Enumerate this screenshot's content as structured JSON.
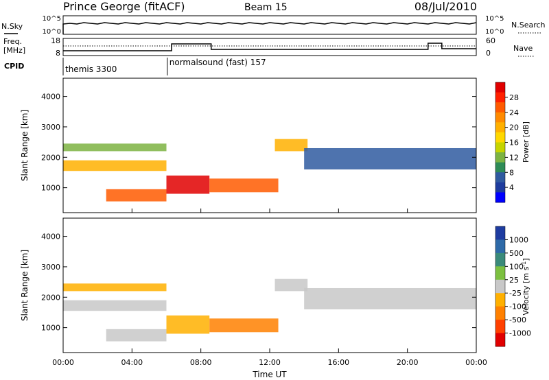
{
  "header": {
    "station": "Prince George (fitACF)",
    "beam": "Beam 15",
    "date": "08/Jul/2010"
  },
  "noise_panel": {
    "left_label": "N.Sky",
    "right_label": "N.Search",
    "left_ticks": [
      "10^5",
      "10^0"
    ],
    "right_ticks": [
      "10^5",
      "10^0"
    ]
  },
  "freq_panel": {
    "left_label_1": "Freq.",
    "left_label_2": "[MHz]",
    "right_label": "Nave",
    "left_ticks": [
      "18",
      "8"
    ],
    "right_ticks": [
      "60",
      "0"
    ]
  },
  "cpid": {
    "label": "CPID",
    "segments": [
      {
        "name": "themis 3300",
        "start_hour": 0,
        "end_hour": 6.05
      },
      {
        "name": "normalsound (fast) 157",
        "start_hour": 6.05,
        "end_hour": 24
      }
    ]
  },
  "colorbars": {
    "power": {
      "label": "Power [dB]",
      "ticks": [
        "28",
        "24",
        "20",
        "16",
        "12",
        "8",
        "4"
      ],
      "colors": [
        "#0000ff",
        "#1e3c9e",
        "#2f5aa0",
        "#2e8b57",
        "#7cb342",
        "#c6d400",
        "#ffd800",
        "#ffb000",
        "#ff8a00",
        "#ff5a00",
        "#ff2000",
        "#e00000"
      ]
    },
    "velocity": {
      "label": "Velocity [m s",
      "label_sup": "-1",
      "label_end": "]",
      "ticks": [
        "1000",
        "500",
        "100",
        "25",
        "-25",
        "-100",
        "-500",
        "-1000"
      ],
      "colors": [
        "#1e3ca0",
        "#2e6aa8",
        "#3a8a7a",
        "#7cc040",
        "#c8c8c8",
        "#ffb000",
        "#ff8000",
        "#ff4000",
        "#e00000"
      ]
    }
  },
  "chart_data": [
    {
      "type": "heatmap",
      "title": "",
      "xlabel": "Time UT",
      "ylabel": "Slant Range [km]",
      "x_ticks": [
        "00:00",
        "04:00",
        "08:00",
        "12:00",
        "16:00",
        "20:00",
        "00:00"
      ],
      "y_ticks": [
        "1000",
        "2000",
        "3000",
        "4000"
      ],
      "xlim_hours": [
        0,
        24
      ],
      "ylim_km": [
        180,
        4600
      ],
      "colorbar": "Power [dB]",
      "echo_regions": [
        {
          "t0": 0.0,
          "t1": 6.0,
          "r0": 2200,
          "r1": 2450,
          "value": 10
        },
        {
          "t0": 0.0,
          "t1": 6.0,
          "r0": 1550,
          "r1": 1900,
          "value": 18
        },
        {
          "t0": 2.5,
          "t1": 6.0,
          "r0": 550,
          "r1": 950,
          "value": 24
        },
        {
          "t0": 6.0,
          "t1": 8.5,
          "r0": 800,
          "r1": 1400,
          "value": 28
        },
        {
          "t0": 8.5,
          "t1": 12.5,
          "r0": 850,
          "r1": 1300,
          "value": 24
        },
        {
          "t0": 12.3,
          "t1": 14.2,
          "r0": 2200,
          "r1": 2600,
          "value": 18
        },
        {
          "t0": 14.0,
          "t1": 24.0,
          "r0": 1600,
          "r1": 2300,
          "value": 6
        }
      ]
    },
    {
      "type": "heatmap",
      "title": "",
      "xlabel": "Time UT",
      "ylabel": "Slant Range [km]",
      "x_ticks": [
        "00:00",
        "04:00",
        "08:00",
        "12:00",
        "16:00",
        "20:00",
        "00:00"
      ],
      "y_ticks": [
        "1000",
        "2000",
        "3000",
        "4000"
      ],
      "xlim_hours": [
        0,
        24
      ],
      "ylim_km": [
        180,
        4600
      ],
      "colorbar": "Velocity [m s^-1]",
      "echo_regions": [
        {
          "t0": 0.0,
          "t1": 6.0,
          "r0": 2200,
          "r1": 2450,
          "value": -100
        },
        {
          "t0": 0.0,
          "t1": 6.0,
          "r0": 1550,
          "r1": 1900,
          "value": 0
        },
        {
          "t0": 2.5,
          "t1": 6.0,
          "r0": 550,
          "r1": 950,
          "value": 0
        },
        {
          "t0": 6.0,
          "t1": 8.5,
          "r0": 800,
          "r1": 1400,
          "value": -100
        },
        {
          "t0": 8.5,
          "t1": 12.5,
          "r0": 850,
          "r1": 1300,
          "value": -300
        },
        {
          "t0": 12.3,
          "t1": 14.2,
          "r0": 2200,
          "r1": 2600,
          "value": 0
        },
        {
          "t0": 14.0,
          "t1": 24.0,
          "r0": 1600,
          "r1": 2300,
          "value": 0
        }
      ]
    }
  ]
}
